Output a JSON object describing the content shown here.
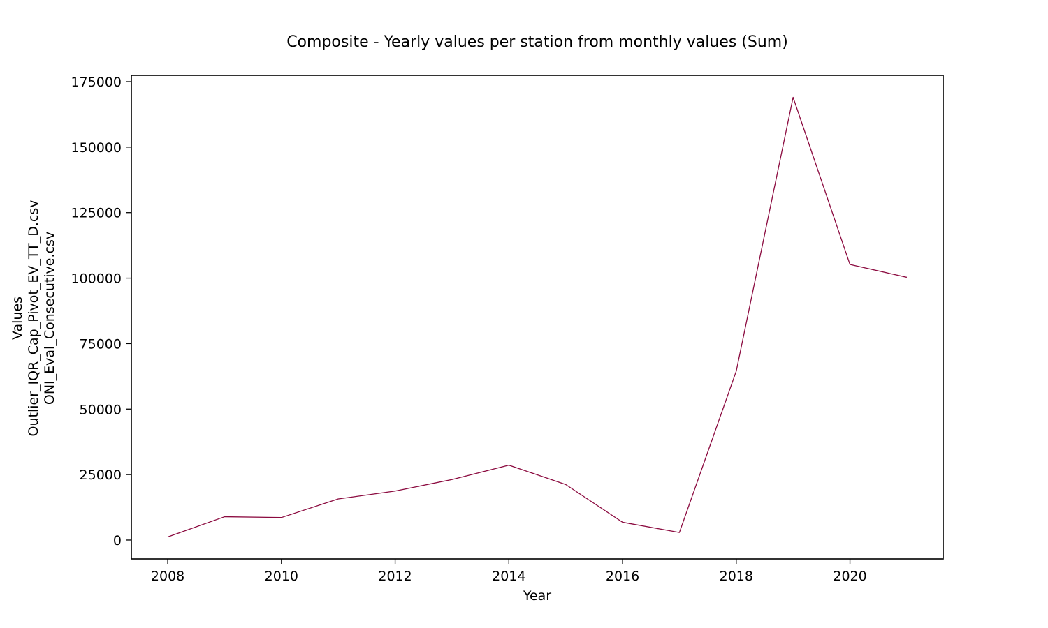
{
  "chart_data": {
    "type": "line",
    "title": "Composite - Yearly values per station from monthly values (Sum)",
    "xlabel": "Year",
    "ylabel_lines": [
      "Values",
      "Outlier_IQR_Cap_Pivot_EV_TT_D.csv",
      "ONI_Eval_Consecutive.csv"
    ],
    "x_ticks": [
      2008,
      2010,
      2012,
      2014,
      2016,
      2018,
      2020
    ],
    "y_ticks": [
      0,
      25000,
      50000,
      75000,
      100000,
      125000,
      150000,
      175000
    ],
    "xlim": [
      2007.36,
      2021.64
    ],
    "ylim": [
      -7200,
      177400
    ],
    "grid": false,
    "series": [
      {
        "color": "#8b0a3f",
        "x": [
          2008,
          2009,
          2010,
          2011,
          2012,
          2013,
          2014,
          2015,
          2016,
          2017,
          2018,
          2019,
          2020,
          2021
        ],
        "y": [
          1200,
          8900,
          8600,
          15700,
          18700,
          23100,
          28600,
          21200,
          6800,
          2900,
          64500,
          169000,
          105200,
          100300
        ]
      }
    ]
  }
}
